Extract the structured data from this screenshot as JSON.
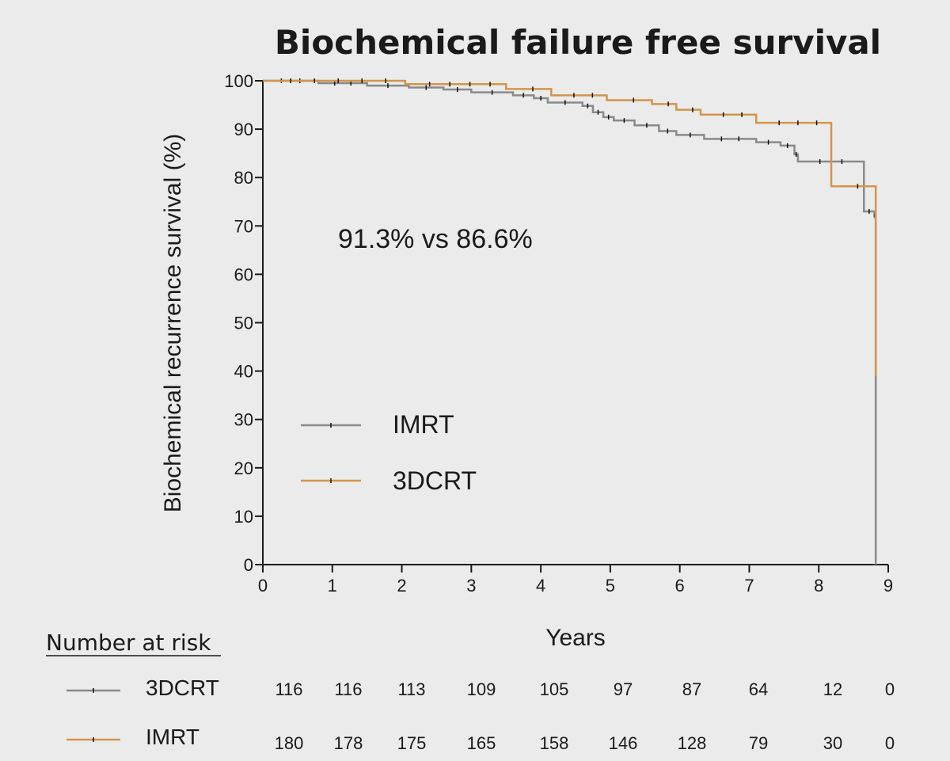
{
  "chart_data": {
    "type": "line",
    "title": "Biochemical failure free survival",
    "xlabel": "Years",
    "ylabel": "Biochemical recurrence survival (%)",
    "xlim": [
      0,
      9
    ],
    "ylim": [
      0,
      100
    ],
    "x_ticks": [
      0,
      1,
      2,
      3,
      4,
      5,
      6,
      7,
      8,
      9
    ],
    "y_ticks": [
      0,
      10,
      20,
      30,
      40,
      50,
      60,
      70,
      80,
      90,
      100
    ],
    "grid": false,
    "annotation": "91.3% vs 86.6%",
    "legend_position": "center-left",
    "series": [
      {
        "name": "IMRT",
        "color": "#8a8a8a",
        "steps": [
          [
            0,
            100
          ],
          [
            0.8,
            99.5
          ],
          [
            1.5,
            99.0
          ],
          [
            2.1,
            98.6
          ],
          [
            2.6,
            98.2
          ],
          [
            3.0,
            97.6
          ],
          [
            3.6,
            97.0
          ],
          [
            3.9,
            96.4
          ],
          [
            4.1,
            95.5
          ],
          [
            4.6,
            94.8
          ],
          [
            4.75,
            93.5
          ],
          [
            4.9,
            92.5
          ],
          [
            5.05,
            91.8
          ],
          [
            5.35,
            90.8
          ],
          [
            5.7,
            89.6
          ],
          [
            5.95,
            88.8
          ],
          [
            6.35,
            88.0
          ],
          [
            7.1,
            87.3
          ],
          [
            7.45,
            86.6
          ],
          [
            7.65,
            84.8
          ],
          [
            7.7,
            83.3
          ],
          [
            8.65,
            73.0
          ],
          [
            8.8,
            72.0
          ],
          [
            8.82,
            0
          ]
        ],
        "end_x": 8.82
      },
      {
        "name": "3DCRT",
        "color": "#d4954a",
        "steps": [
          [
            0,
            100
          ],
          [
            2.05,
            99.3
          ],
          [
            3.5,
            98.3
          ],
          [
            4.15,
            97.0
          ],
          [
            4.95,
            96.0
          ],
          [
            5.6,
            95.2
          ],
          [
            5.95,
            94.0
          ],
          [
            6.3,
            93.0
          ],
          [
            7.1,
            91.3
          ],
          [
            8.18,
            78.2
          ],
          [
            8.82,
            39.0
          ]
        ],
        "end_x": 8.82
      }
    ],
    "number_at_risk": {
      "title": "Number at risk",
      "rows": [
        {
          "label": "3DCRT",
          "color": "#8a8a8a",
          "values": [
            "116",
            "116",
            "113",
            "109",
            "105",
            "97",
            "87",
            "64",
            "12",
            "0"
          ]
        },
        {
          "label": "IMRT",
          "color": "#d4954a",
          "values": [
            "180",
            "178",
            "175",
            "165",
            "158",
            "146",
            "128",
            "79",
            "30",
            "0"
          ]
        }
      ]
    }
  }
}
